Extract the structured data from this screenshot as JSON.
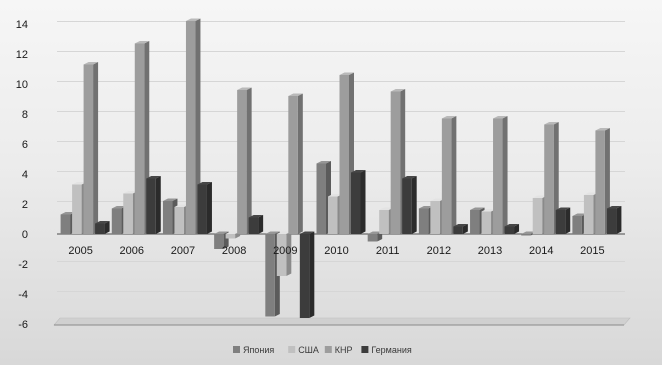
{
  "chart_data": {
    "type": "bar",
    "title": "",
    "xlabel": "",
    "ylabel": "",
    "categories": [
      "2005",
      "2006",
      "2007",
      "2008",
      "2009",
      "2010",
      "2011",
      "2012",
      "2013",
      "2014",
      "2015"
    ],
    "ylim": [
      -6,
      14
    ],
    "yticks": [
      -6,
      -4,
      -2,
      0,
      2,
      4,
      6,
      8,
      10,
      12,
      14
    ],
    "grid": true,
    "legend_position": "bottom",
    "series": [
      {
        "name": "Япония",
        "color": "#7f7f7f",
        "values": [
          1.3,
          1.7,
          2.2,
          -1.0,
          -5.5,
          4.7,
          -0.5,
          1.7,
          1.6,
          -0.1,
          1.2
        ]
      },
      {
        "name": "США",
        "color": "#c0c0c0",
        "values": [
          3.3,
          2.7,
          1.8,
          -0.3,
          -2.8,
          2.5,
          1.6,
          2.2,
          1.5,
          2.4,
          2.6
        ]
      },
      {
        "name": "КНР",
        "color": "#9d9d9d",
        "values": [
          11.3,
          12.7,
          14.2,
          9.6,
          9.2,
          10.6,
          9.5,
          7.7,
          7.7,
          7.3,
          6.9
        ]
      },
      {
        "name": "Германия",
        "color": "#3c3c3c",
        "values": [
          0.7,
          3.7,
          3.3,
          1.1,
          -5.6,
          4.1,
          3.7,
          0.5,
          0.5,
          1.6,
          1.7
        ]
      }
    ]
  }
}
